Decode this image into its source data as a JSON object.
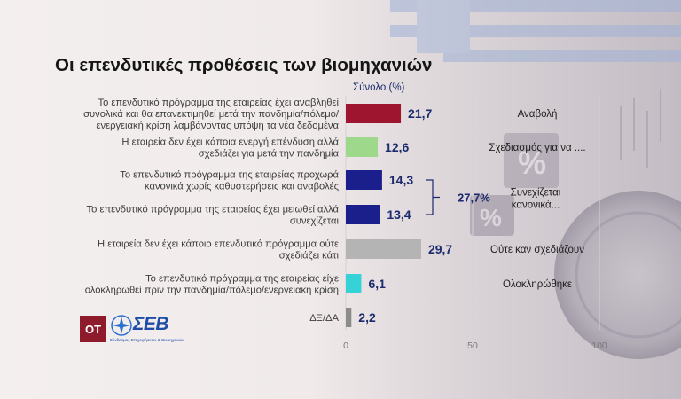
{
  "colors": {
    "postponement": "#9e1530",
    "planning": "#9ed88a",
    "continuing": "#1a1f8c",
    "none": "#b4b4b4",
    "completed": "#35d3d8",
    "dk": "#8c8c8c",
    "value_text": "#1a2b6e"
  },
  "logos": {
    "ot": "ΟΤ",
    "seb": "ΣΕΒ",
    "seb_sub": "Σύνδεσμος Επιχειρήσεων & Βιομηχανιών"
  },
  "chart_data": {
    "type": "bar",
    "orientation": "horizontal",
    "title": "Οι επενδυτικές προθέσεις των βιομηχανιών",
    "subtitle": "Σύνολο (%)",
    "categories": [
      "Το επενδυτικό πρόγραμμα της εταιρείας έχει αναβληθεί συνολικά και θα επανεκτιμηθεί μετά την πανδημία/πόλεμο/ ενεργειακή κρίση λαμβάνοντας υπόψη τα νέα δεδομένα",
      "Η εταιρεία δεν έχει κάποια ενεργή επένδυση αλλά σχεδιάζει για μετά την πανδημία",
      "Το επενδυτικό πρόγραμμα της εταιρείας προχωρά κανονικά χωρίς καθυστερήσεις και αναβολές",
      "Το επενδυτικό πρόγραμμα της εταιρείας έχει μειωθεί αλλά συνεχίζεται",
      "Η εταιρεία δεν έχει κάποιο επενδυτικό πρόγραμμα ούτε σχεδιάζει κάτι",
      "Το επενδυτικό πρόγραμμα της εταιρείας είχε ολοκληρωθεί πριν την πανδημία/πόλεμο/ενεργειακή κρίση",
      "ΔΞ/ΔΑ"
    ],
    "category_lines": [
      [
        "Το επενδυτικό πρόγραμμα της εταιρείας έχει αναβληθεί",
        "συνολικά και θα επανεκτιμηθεί μετά την πανδημία/πόλεμο/",
        "ενεργειακή κρίση λαμβάνοντας υπόψη τα νέα δεδομένα"
      ],
      [
        "Η εταιρεία δεν έχει κάποια ενεργή επένδυση αλλά",
        "σχεδιάζει για μετά την πανδημία"
      ],
      [
        "Το επενδυτικό πρόγραμμα της εταιρείας προχωρά",
        "κανονικά χωρίς καθυστερήσεις και αναβολές"
      ],
      [
        "Το επενδυτικό πρόγραμμα της εταιρείας έχει μειωθεί αλλά",
        "συνεχίζεται"
      ],
      [
        "Η εταιρεία δεν έχει κάποιο επενδυτικό πρόγραμμα ούτε",
        "σχεδιάζει κάτι"
      ],
      [
        "Το επενδυτικό πρόγραμμα της εταιρείας είχε",
        "ολοκληρωθεί πριν την πανδημία/πόλεμο/ενεργειακή κρίση"
      ],
      [
        "ΔΞ/ΔΑ"
      ]
    ],
    "values": [
      21.7,
      12.6,
      14.3,
      13.4,
      29.7,
      6.1,
      2.2
    ],
    "value_labels": [
      "21,7",
      "12,6",
      "14,3",
      "13,4",
      "29,7",
      "6,1",
      "2,2"
    ],
    "bar_colors": [
      "#9e1530",
      "#9ed88a",
      "#1a1f8c",
      "#1a1f8c",
      "#b4b4b4",
      "#35d3d8",
      "#8c8c8c"
    ],
    "short_labels": [
      [
        "Αναβολή"
      ],
      [
        "Σχεδιασμός για να ...."
      ],
      [
        "Συνεχίζεται",
        "κανονικά..."
      ],
      [],
      [
        "Ούτε καν σχεδιάζουν"
      ],
      [
        "Ολοκληρώθηκε"
      ],
      []
    ],
    "group_label": "27,7%",
    "group_indices": [
      2,
      3
    ],
    "xlim": [
      0,
      100
    ],
    "xticks": [
      0,
      50,
      100
    ],
    "xtick_labels": [
      "0",
      "50",
      "100"
    ],
    "grid": true
  }
}
